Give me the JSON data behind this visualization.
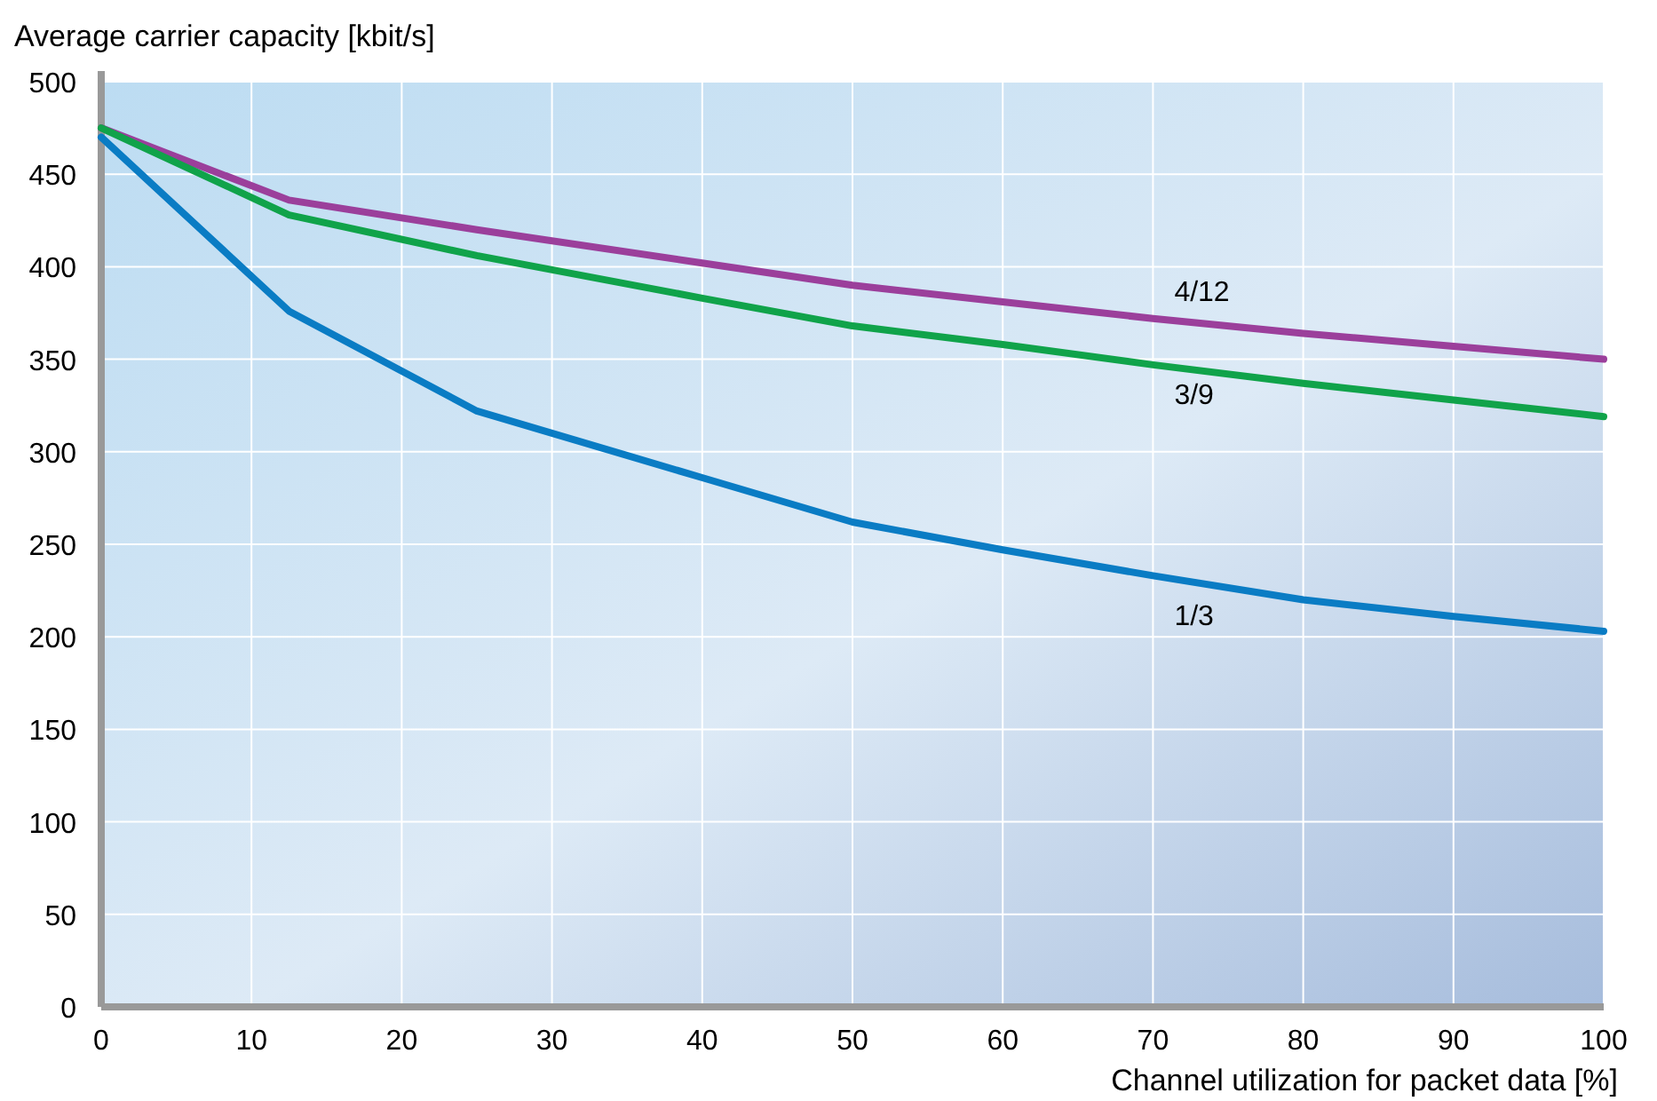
{
  "chart_data": {
    "type": "line",
    "ylabel": "Average carrier capacity [kbit/s]",
    "xlabel": "Channel utilization for packet data [%]",
    "x": [
      0,
      12.5,
      25,
      40,
      50,
      60,
      70,
      80,
      90,
      100
    ],
    "series": [
      {
        "name": "4/12",
        "color": "#9b3f9b",
        "values": [
          475,
          436,
          420,
          402,
          390,
          381,
          372,
          364,
          357,
          350
        ]
      },
      {
        "name": "3/9",
        "color": "#10a34a",
        "values": [
          475,
          428,
          406,
          383,
          368,
          358,
          347,
          337,
          328,
          319
        ]
      },
      {
        "name": "1/3",
        "color": "#0a7cc4",
        "values": [
          470,
          376,
          322,
          286,
          262,
          247,
          233,
          220,
          211,
          203
        ]
      }
    ],
    "xlim": [
      0,
      100
    ],
    "xticks": [
      0,
      10,
      20,
      30,
      40,
      50,
      60,
      70,
      80,
      90,
      100
    ],
    "ylim": [
      0,
      500
    ],
    "yticks": [
      0,
      50,
      100,
      150,
      200,
      250,
      300,
      350,
      400,
      450,
      500
    ],
    "grid": true,
    "legend": false,
    "marker": "none",
    "line_style": "solid"
  }
}
